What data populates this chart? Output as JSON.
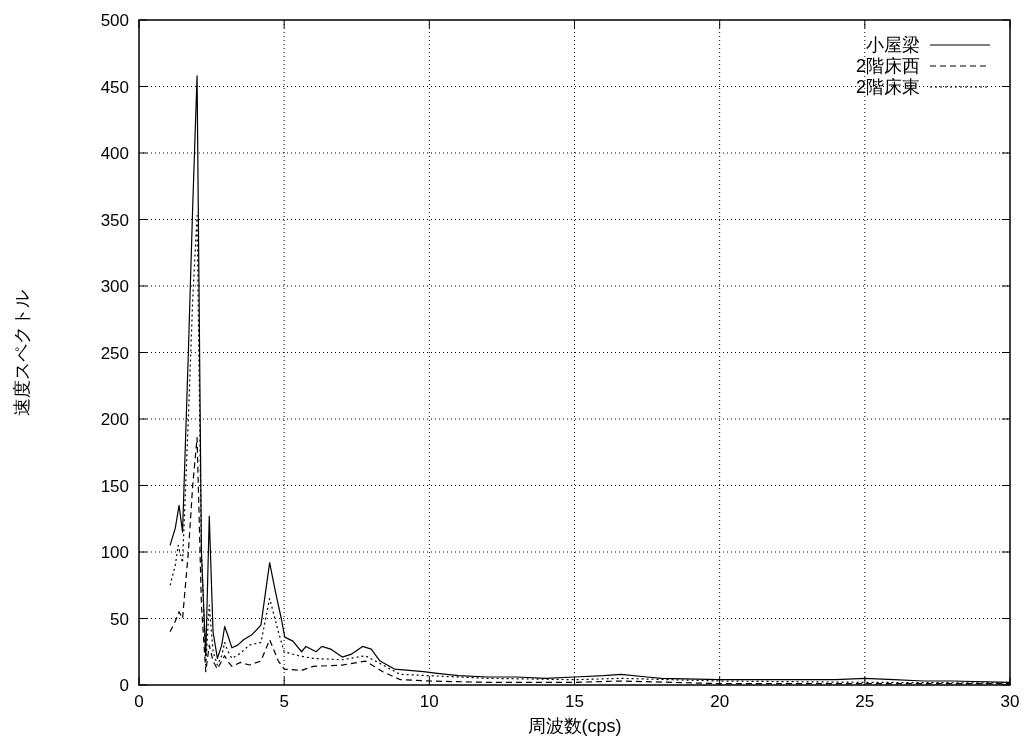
{
  "chart_data": {
    "type": "line",
    "xlabel": "周波数(cps)",
    "ylabel": "速度スペクトル",
    "xlim": [
      0,
      30
    ],
    "ylim": [
      0,
      500
    ],
    "xticks": [
      0,
      5,
      10,
      15,
      20,
      25,
      30
    ],
    "yticks": [
      0,
      50,
      100,
      150,
      200,
      250,
      300,
      350,
      400,
      450,
      500
    ],
    "grid": true,
    "legend": "top right",
    "series": [
      {
        "name": "小屋梁",
        "color": "#000000",
        "line_style": "solid",
        "x": [
          1.07,
          1.25,
          1.38,
          1.5,
          1.7,
          1.85,
          2.0,
          2.15,
          2.3,
          2.42,
          2.55,
          2.7,
          2.85,
          2.95,
          3.05,
          3.2,
          3.4,
          3.6,
          3.9,
          4.2,
          4.5,
          4.7,
          4.9,
          5.02,
          5.3,
          5.6,
          5.75,
          6.1,
          6.3,
          6.6,
          7.0,
          7.3,
          7.7,
          8.0,
          8.3,
          8.8,
          9.5,
          9.8,
          10.2,
          11,
          12,
          13,
          14,
          15,
          16,
          16.6,
          17.5,
          18,
          20,
          22,
          24,
          25,
          26,
          27,
          28,
          30
        ],
        "values": [
          105,
          118,
          135,
          115,
          250,
          360,
          458,
          100,
          22,
          127,
          40,
          20,
          30,
          44,
          38,
          28,
          30,
          34,
          38,
          45,
          92,
          70,
          50,
          36,
          33,
          25,
          29,
          25,
          29,
          27,
          21,
          23,
          29,
          27,
          18,
          12,
          10.6,
          10,
          9,
          7,
          6,
          6,
          5,
          6,
          7,
          8,
          6,
          5,
          4,
          4,
          4,
          5,
          4,
          3,
          3,
          2
        ]
      },
      {
        "name": "2階床西",
        "color": "#000000",
        "line_style": "dashed",
        "x": [
          1.07,
          1.25,
          1.38,
          1.5,
          1.7,
          1.85,
          2.0,
          2.15,
          2.3,
          2.42,
          2.55,
          2.7,
          2.85,
          2.95,
          3.05,
          3.2,
          3.5,
          3.8,
          4.2,
          4.5,
          4.8,
          5.0,
          5.6,
          6.0,
          7.0,
          7.8,
          8.4,
          9.0,
          10,
          12,
          15,
          16.6,
          20,
          25,
          30
        ],
        "values": [
          40,
          48,
          55,
          50,
          100,
          150,
          186,
          60,
          10,
          30,
          18,
          12,
          18,
          22,
          18,
          14,
          17,
          15,
          18,
          34,
          18,
          12,
          11,
          14,
          15,
          18,
          10,
          4,
          3,
          2,
          2,
          3,
          1,
          1,
          1
        ]
      },
      {
        "name": "2階床東",
        "color": "#000000",
        "line_style": "dotted",
        "x": [
          1.07,
          1.25,
          1.35,
          1.5,
          1.7,
          1.85,
          2.0,
          2.15,
          2.3,
          2.42,
          2.55,
          2.7,
          2.85,
          2.95,
          3.05,
          3.2,
          3.5,
          3.8,
          4.2,
          4.5,
          4.8,
          5.0,
          5.5,
          6.0,
          7.0,
          7.8,
          8.4,
          9.0,
          10,
          12,
          15,
          16.6,
          20,
          25,
          30
        ],
        "values": [
          75,
          90,
          105,
          92,
          200,
          290,
          353,
          100,
          15,
          60,
          25,
          15,
          22,
          32,
          26,
          20,
          24,
          30,
          32,
          65,
          40,
          25,
          22,
          20,
          19,
          22,
          15,
          8,
          7,
          5,
          4,
          5,
          3,
          2,
          1.5
        ]
      }
    ]
  }
}
